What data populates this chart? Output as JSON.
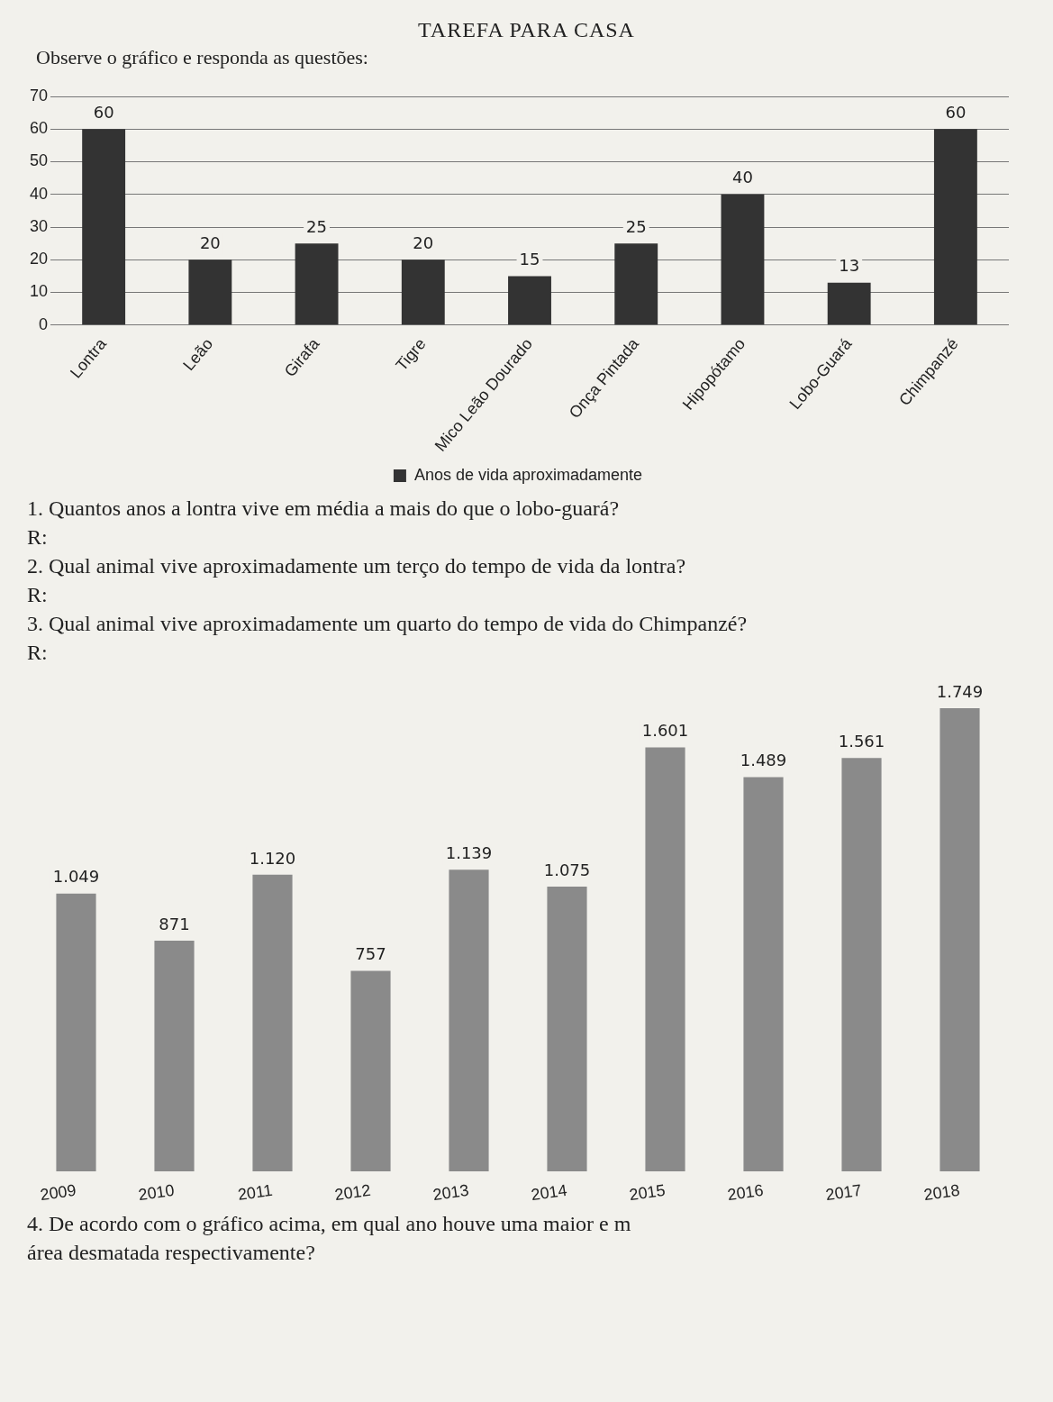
{
  "chart_data": [
    {
      "type": "bar",
      "title": "TAREFA PARA CASA",
      "subtitle": "Observe o gráfico e responda as questões:",
      "categories": [
        "Lontra",
        "Leão",
        "Girafa",
        "Tigre",
        "Mico Leão Dourado",
        "Onça Pintada",
        "Hipopótamo",
        "Lobo-Guará",
        "Chimpanzé"
      ],
      "series": [
        {
          "name": "Anos de vida aproximadamente",
          "color": "#333333",
          "values": [
            60,
            20,
            25,
            20,
            15,
            25,
            40,
            13,
            60
          ]
        }
      ],
      "ylim": [
        0,
        70
      ],
      "yticks": [
        0,
        10,
        20,
        30,
        40,
        50,
        60,
        70
      ],
      "grid": "y",
      "legend": "bottom",
      "data_labels": true,
      "annotations": [
        "1. Quantos anos a lontra vive em média a mais do que o lobo-guará?",
        "R:",
        "2. Qual animal vive aproximadamente um terço do tempo de vida da lontra?",
        "R:",
        "3. Qual animal vive aproximadamente um quarto do tempo de vida do Chimpanzé?",
        "R:"
      ]
    },
    {
      "type": "bar",
      "categories": [
        "2009",
        "2010",
        "2011",
        "2012",
        "2013",
        "2014",
        "2015",
        "2016",
        "2017",
        "2018"
      ],
      "values": [
        1049,
        871,
        1120,
        757,
        1139,
        1075,
        1601,
        1489,
        1561,
        1749
      ],
      "color": "#8a8a8a",
      "value_labels": [
        "1.049",
        "871",
        "1.120",
        "757",
        "1.139",
        "1.075",
        "1.601",
        "1.489",
        "1.561",
        "1.749"
      ],
      "tick_labels": "x",
      "grid": false,
      "legend": false,
      "annotations": [
        "4. De acordo com o gráfico acima, em qual ano houve uma maior e m",
        "área desmatada respectivamente?"
      ]
    }
  ]
}
